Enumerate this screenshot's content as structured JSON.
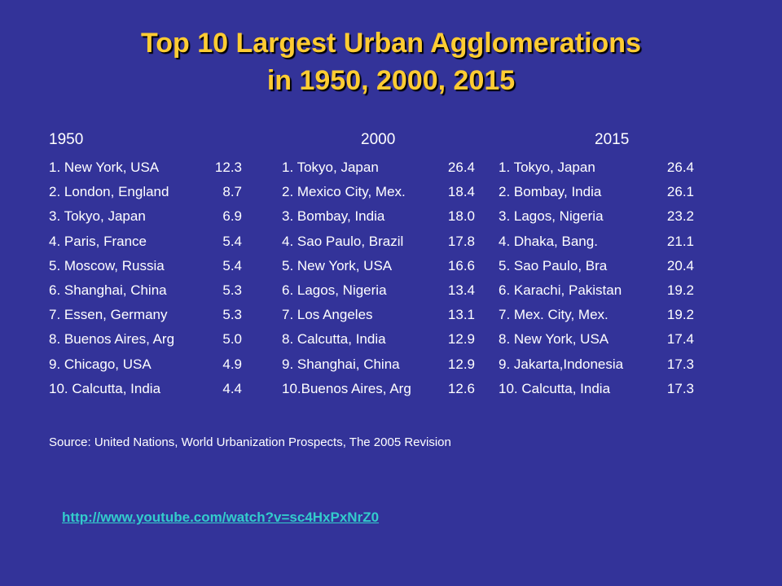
{
  "title": {
    "line1": "Top 10 Largest Urban Agglomerations",
    "line2": "in 1950, 2000, 2015"
  },
  "colors": {
    "background": "#333399",
    "title": "#ffcc33",
    "text": "#ffffff",
    "link": "#33cccc"
  },
  "columns": [
    {
      "header": "1950",
      "items": [
        {
          "label": "1. New York, USA",
          "value": "12.3"
        },
        {
          "label": "2. London, England",
          "value": "8.7"
        },
        {
          "label": "3. Tokyo, Japan",
          "value": "6.9"
        },
        {
          "label": "4. Paris, France",
          "value": "5.4"
        },
        {
          "label": "5. Moscow, Russia",
          "value": "5.4"
        },
        {
          "label": "6. Shanghai, China",
          "value": "5.3"
        },
        {
          "label": "7. Essen, Germany",
          "value": "5.3"
        },
        {
          "label": "8. Buenos Aires, Arg",
          "value": "5.0"
        },
        {
          "label": "9. Chicago, USA",
          "value": "4.9"
        },
        {
          "label": "10. Calcutta, India",
          "value": "4.4"
        }
      ]
    },
    {
      "header": "2000",
      "items": [
        {
          "label": "1. Tokyo, Japan",
          "value": "26.4"
        },
        {
          "label": "2. Mexico City, Mex.",
          "value": "18.4"
        },
        {
          "label": "3. Bombay, India",
          "value": "18.0"
        },
        {
          "label": "4. Sao Paulo, Brazil",
          "value": "17.8"
        },
        {
          "label": "5. New York, USA",
          "value": "16.6"
        },
        {
          "label": "6. Lagos, Nigeria",
          "value": "13.4"
        },
        {
          "label": "7. Los Angeles",
          "value": "13.1"
        },
        {
          "label": "8. Calcutta, India",
          "value": "12.9"
        },
        {
          "label": "9. Shanghai, China",
          "value": "12.9"
        },
        {
          "label": "10.Buenos Aires, Arg",
          "value": "12.6"
        }
      ]
    },
    {
      "header": "2015",
      "items": [
        {
          "label": "1. Tokyo, Japan",
          "value": "26.4"
        },
        {
          "label": "2. Bombay, India",
          "value": "26.1"
        },
        {
          "label": "3. Lagos, Nigeria",
          "value": "23.2"
        },
        {
          "label": "4. Dhaka, Bang.",
          "value": "21.1"
        },
        {
          "label": "5. Sao Paulo, Bra",
          "value": "20.4"
        },
        {
          "label": "6. Karachi, Pakistan",
          "value": "19.2"
        },
        {
          "label": "7. Mex. City, Mex.",
          "value": "19.2"
        },
        {
          "label": "8. New York, USA",
          "value": "17.4"
        },
        {
          "label": "9. Jakarta,Indonesia",
          "value": "17.3"
        },
        {
          "label": "10. Calcutta, India",
          "value": "17.3"
        }
      ]
    }
  ],
  "source": "Source: United Nations, World Urbanization Prospects, The 2005 Revision",
  "link": "http://www.youtube.com/watch?v=sc4HxPxNrZ0"
}
